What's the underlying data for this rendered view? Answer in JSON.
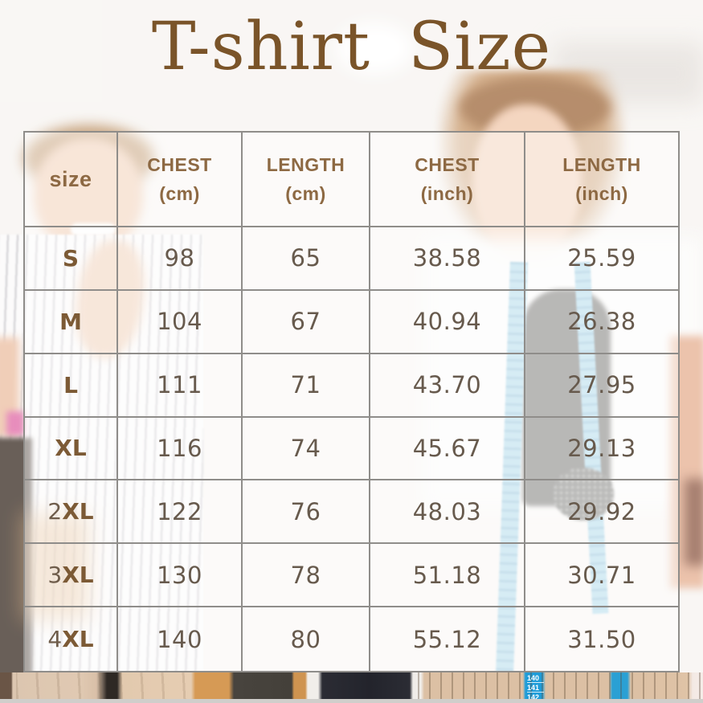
{
  "page": {
    "title": "T-shirt Size"
  },
  "colors": {
    "title_brown": "#7a5429",
    "header_brown": "#8d6943",
    "size_label_brown": "#7c5a35",
    "cell_text": "#675a4d",
    "grid_line": "#8f8d8a",
    "tape_blue": "#1f9cd8"
  },
  "table": {
    "columns": [
      {
        "label": "size",
        "sub": ""
      },
      {
        "label": "CHEST",
        "sub": "(cm)"
      },
      {
        "label": "LENGTH",
        "sub": "(cm)"
      },
      {
        "label": "CHEST",
        "sub": "(inch)"
      },
      {
        "label": "LENGTH",
        "sub": "(inch)"
      }
    ],
    "rows": [
      {
        "size_prefix": "",
        "size_main": "S",
        "chest_cm": "98",
        "length_cm": "65",
        "chest_inch": "38.58",
        "length_inch": "25.59"
      },
      {
        "size_prefix": "",
        "size_main": "M",
        "chest_cm": "104",
        "length_cm": "67",
        "chest_inch": "40.94",
        "length_inch": "26.38"
      },
      {
        "size_prefix": "",
        "size_main": "L",
        "chest_cm": "111",
        "length_cm": "71",
        "chest_inch": "43.70",
        "length_inch": "27.95"
      },
      {
        "size_prefix": "",
        "size_main": "XL",
        "chest_cm": "116",
        "length_cm": "74",
        "chest_inch": "45.67",
        "length_inch": "29.13"
      },
      {
        "size_prefix": "2",
        "size_main": "XL",
        "chest_cm": "122",
        "length_cm": "76",
        "chest_inch": "48.03",
        "length_inch": "29.92"
      },
      {
        "size_prefix": "3",
        "size_main": "XL",
        "chest_cm": "130",
        "length_cm": "78",
        "chest_inch": "51.18",
        "length_inch": "30.71"
      },
      {
        "size_prefix": "4",
        "size_main": "XL",
        "chest_cm": "140",
        "length_cm": "80",
        "chest_inch": "55.12",
        "length_inch": "31.50"
      }
    ]
  },
  "photo": {
    "tape_numbers": [
      "140",
      "141",
      "142"
    ]
  },
  "chart_data": {
    "type": "table",
    "title": "T-shirt Size",
    "columns": [
      "size",
      "CHEST (cm)",
      "LENGTH (cm)",
      "CHEST (inch)",
      "LENGTH (inch)"
    ],
    "rows": [
      [
        "S",
        98,
        65,
        38.58,
        25.59
      ],
      [
        "M",
        104,
        67,
        40.94,
        26.38
      ],
      [
        "L",
        111,
        71,
        43.7,
        27.95
      ],
      [
        "XL",
        116,
        74,
        45.67,
        29.13
      ],
      [
        "2XL",
        122,
        76,
        48.03,
        29.92
      ],
      [
        "3XL",
        130,
        78,
        51.18,
        30.71
      ],
      [
        "4XL",
        140,
        80,
        55.12,
        31.5
      ]
    ]
  }
}
